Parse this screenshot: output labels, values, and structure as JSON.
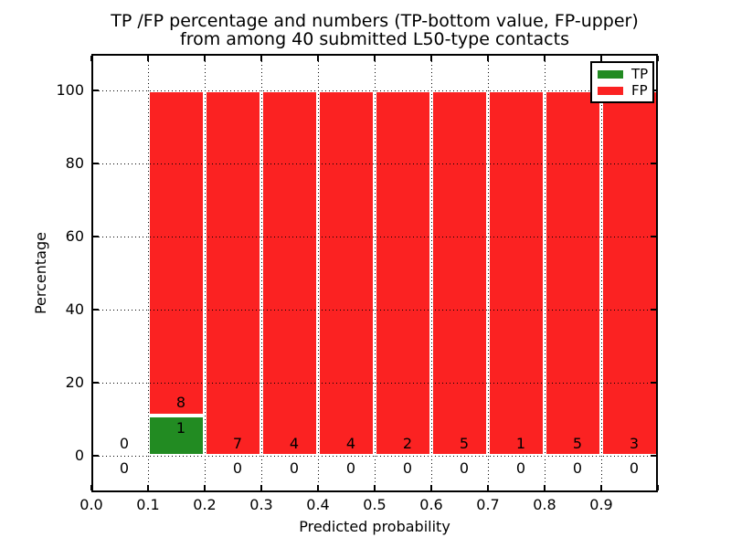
{
  "title": {
    "line1": "TP /FP percentage and numbers (TP-bottom value, FP-upper)",
    "line2": "from among 40 submitted L50-type contacts"
  },
  "axes": {
    "xlabel": "Predicted probability",
    "ylabel": "Percentage",
    "xtick_labels": [
      "0.0",
      "0.1",
      "0.2",
      "0.3",
      "0.4",
      "0.5",
      "0.6",
      "0.7",
      "0.8",
      "0.9"
    ],
    "ytick_labels": [
      "0",
      "20",
      "40",
      "60",
      "80",
      "100"
    ],
    "ytick_values": [
      0,
      20,
      40,
      60,
      80,
      100
    ],
    "xlim": [
      0.0,
      1.0
    ],
    "ylim": [
      -10,
      110
    ],
    "grid_style": "dotted"
  },
  "legend": {
    "position": "upper-right",
    "entries": [
      {
        "label": "TP",
        "color_key": "tp"
      },
      {
        "label": "FP",
        "color_key": "fp"
      }
    ]
  },
  "colors": {
    "tp": "#228b22",
    "fp": "#fb2222",
    "bar_edge": "#ffffff",
    "grid": "#000000",
    "frame": "#000000",
    "text": "#000000",
    "background": "#ffffff"
  },
  "chart_data": {
    "type": "bar",
    "stacked": true,
    "total_contacts": 40,
    "bin_width": 0.1,
    "series_names": [
      "TP",
      "FP"
    ],
    "bins": [
      {
        "x0": 0.0,
        "x1": 0.1,
        "tp_count": 0,
        "fp_count": 0,
        "tp_pct": 0,
        "fp_pct": 0
      },
      {
        "x0": 0.1,
        "x1": 0.2,
        "tp_count": 1,
        "fp_count": 8,
        "tp_pct": 11.1,
        "fp_pct": 88.9
      },
      {
        "x0": 0.2,
        "x1": 0.3,
        "tp_count": 0,
        "fp_count": 7,
        "tp_pct": 0,
        "fp_pct": 100
      },
      {
        "x0": 0.3,
        "x1": 0.4,
        "tp_count": 0,
        "fp_count": 4,
        "tp_pct": 0,
        "fp_pct": 100
      },
      {
        "x0": 0.4,
        "x1": 0.5,
        "tp_count": 0,
        "fp_count": 4,
        "tp_pct": 0,
        "fp_pct": 100
      },
      {
        "x0": 0.5,
        "x1": 0.6,
        "tp_count": 0,
        "fp_count": 2,
        "tp_pct": 0,
        "fp_pct": 100
      },
      {
        "x0": 0.6,
        "x1": 0.7,
        "tp_count": 0,
        "fp_count": 5,
        "tp_pct": 0,
        "fp_pct": 100
      },
      {
        "x0": 0.7,
        "x1": 0.8,
        "tp_count": 0,
        "fp_count": 1,
        "tp_pct": 0,
        "fp_pct": 100
      },
      {
        "x0": 0.8,
        "x1": 0.9,
        "tp_count": 0,
        "fp_count": 5,
        "tp_pct": 0,
        "fp_pct": 100
      },
      {
        "x0": 0.9,
        "x1": 1.0,
        "tp_count": 0,
        "fp_count": 3,
        "tp_pct": 0,
        "fp_pct": 100
      }
    ]
  }
}
